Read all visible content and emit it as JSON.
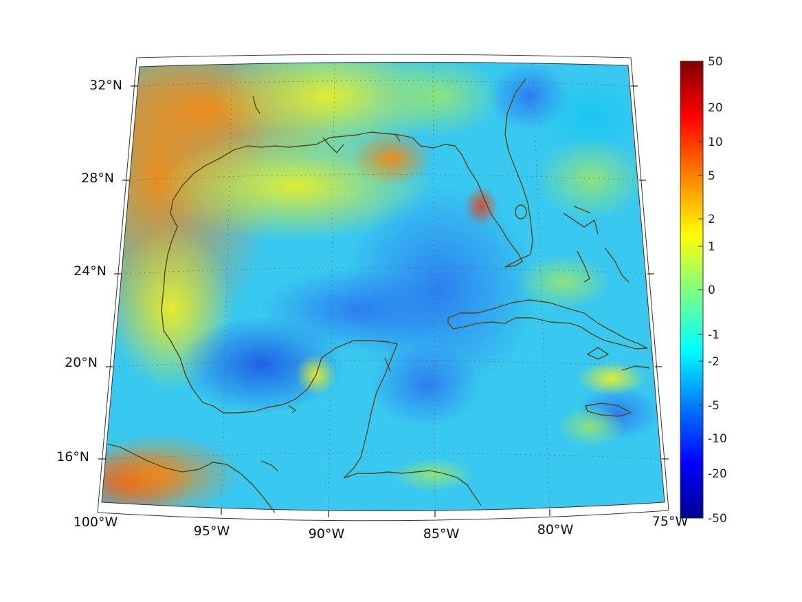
{
  "map": {
    "region": "Gulf of Mexico",
    "projection": "conic",
    "lon_labels": [
      "100°W",
      "95°W",
      "90°W",
      "85°W",
      "80°W",
      "75°W"
    ],
    "lat_labels": [
      "32°N",
      "28°N",
      "24°N",
      "20°N",
      "16°N"
    ],
    "coastline_color": "#5a4514",
    "colormap": "jet"
  },
  "colorbar": {
    "tick_labels": [
      "50",
      "20",
      "10",
      "5",
      "2",
      "1",
      "0",
      "-1",
      "-2",
      "-5",
      "-10",
      "-20",
      "-50"
    ],
    "colors": [
      "#00008f",
      "#0000ff",
      "#0080ff",
      "#00ffff",
      "#80ff80",
      "#ffff00",
      "#ff8000",
      "#ff0000",
      "#800000"
    ]
  }
}
